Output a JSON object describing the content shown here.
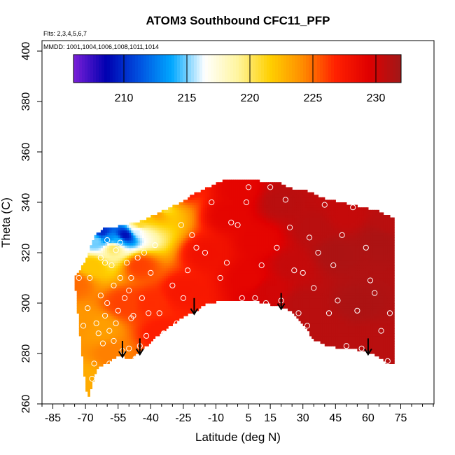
{
  "chart_data": {
    "type": "heatmap",
    "title": "ATOM3 Southbound CFC11_PFP",
    "flights_note": "Flts: 2,3,4,5,6,7",
    "dates_note": "MMDD: 1001,1004,1006,1008,1011,1014",
    "xlabel": "Latitude (deg N)",
    "ylabel": "Theta (C)",
    "xlim": [
      -90,
      90
    ],
    "ylim": [
      260,
      400
    ],
    "x_ticks": [
      -85,
      -70,
      -55,
      -40,
      -25,
      -10,
      5,
      15,
      30,
      45,
      60,
      75
    ],
    "x_tick_labels": [
      "-85",
      "-70",
      "-55",
      "-40",
      "-25",
      "-10",
      "5",
      "15",
      "30",
      "45",
      "60",
      "75"
    ],
    "x_minor_step": 5,
    "y_ticks": [
      260,
      280,
      300,
      320,
      340,
      360,
      380,
      400
    ],
    "y_tick_labels": [
      "260",
      "280",
      "300",
      "320",
      "340",
      "360",
      "380",
      "400"
    ],
    "colorbar": {
      "min": 206,
      "max": 232,
      "ticks": [
        210,
        215,
        220,
        225,
        230
      ],
      "tick_labels": [
        "210",
        "215",
        "220",
        "225",
        "230"
      ],
      "colors": [
        "#7b1fd8",
        "#0000b0",
        "#0050e0",
        "#00a8ff",
        "#ffffff",
        "#fff5a0",
        "#ffd000",
        "#ff8c00",
        "#ff2000",
        "#e00000",
        "#a01818"
      ]
    },
    "colors": {
      "point_outline": "#ffffff",
      "arrow": "#000000",
      "axes": "#000000"
    },
    "envelope": {
      "lat": [
        -75,
        -73,
        -71,
        -69,
        -67,
        -65,
        -62,
        -59,
        -55,
        -50,
        -45,
        -40,
        -35,
        -30,
        -25,
        -20,
        -15,
        -10,
        -5,
        0,
        5,
        10,
        15,
        20,
        25,
        30,
        35,
        40,
        45,
        50,
        55,
        60,
        65,
        70,
        72
      ],
      "theta_low": [
        310,
        292,
        275,
        262,
        268,
        274,
        276,
        277,
        280,
        278,
        281,
        285,
        289,
        292,
        295,
        297,
        300,
        301,
        301,
        301,
        301,
        301,
        300,
        299,
        297,
        292,
        286,
        284,
        283,
        282,
        282,
        281,
        279,
        276,
        276
      ],
      "theta_high": [
        310,
        312,
        315,
        318,
        324,
        327,
        329,
        330,
        330,
        331,
        332,
        334,
        336,
        338,
        340,
        343,
        345,
        347,
        349,
        349,
        349,
        348,
        348,
        347,
        345,
        345,
        343,
        341,
        340,
        339,
        338,
        337,
        336,
        334,
        334
      ]
    },
    "field_anchors": [
      [
        -74,
        308,
        225
      ],
      [
        -72,
        292,
        223.8
      ],
      [
        -70,
        270,
        223
      ],
      [
        -67,
        315,
        222
      ],
      [
        -65,
        325,
        215
      ],
      [
        -62,
        328,
        210
      ],
      [
        -60,
        326,
        213
      ],
      [
        -57,
        322,
        220
      ],
      [
        -55,
        325,
        214
      ],
      [
        -52,
        327,
        209
      ],
      [
        -46,
        329,
        216
      ],
      [
        -45,
        331,
        221
      ],
      [
        -42,
        334,
        222
      ],
      [
        -37,
        336,
        223.5
      ],
      [
        -35,
        338,
        220
      ],
      [
        -32,
        342,
        224
      ],
      [
        -27,
        345,
        228
      ],
      [
        -63,
        290,
        223.5
      ],
      [
        -58,
        280,
        224.5
      ],
      [
        -52,
        300,
        226
      ],
      [
        -45,
        315,
        226
      ],
      [
        -40,
        300,
        226.5
      ],
      [
        -35,
        288,
        227
      ],
      [
        -25,
        305,
        227.5
      ],
      [
        -15,
        320,
        228
      ],
      [
        -5,
        335,
        229
      ],
      [
        0,
        345,
        229
      ],
      [
        5,
        310,
        229
      ],
      [
        10,
        325,
        229
      ],
      [
        15,
        305,
        230
      ],
      [
        20,
        340,
        231
      ],
      [
        25,
        315,
        230.5
      ],
      [
        30,
        300,
        231
      ],
      [
        35,
        330,
        231
      ],
      [
        40,
        290,
        231
      ],
      [
        45,
        320,
        231.5
      ],
      [
        50,
        335,
        230.5
      ],
      [
        55,
        300,
        231.5
      ],
      [
        60,
        285,
        231
      ],
      [
        65,
        325,
        231.5
      ],
      [
        70,
        280,
        231
      ],
      [
        70,
        332,
        231
      ]
    ],
    "sample_points": [
      [
        -73,
        310
      ],
      [
        -71,
        291
      ],
      [
        -69,
        298
      ],
      [
        -68,
        310
      ],
      [
        -67,
        270
      ],
      [
        -66,
        276
      ],
      [
        -65,
        292
      ],
      [
        -64,
        288
      ],
      [
        -63,
        303
      ],
      [
        -63,
        318
      ],
      [
        -62,
        284
      ],
      [
        -61,
        295
      ],
      [
        -61,
        316
      ],
      [
        -60,
        300
      ],
      [
        -60,
        325
      ],
      [
        -59,
        276
      ],
      [
        -59,
        289
      ],
      [
        -58,
        315
      ],
      [
        -57,
        285
      ],
      [
        -57,
        307
      ],
      [
        -56,
        292
      ],
      [
        -56,
        321
      ],
      [
        -55,
        297
      ],
      [
        -54,
        310
      ],
      [
        -54,
        324
      ],
      [
        -53,
        281
      ],
      [
        -52,
        302
      ],
      [
        -51,
        316
      ],
      [
        -50,
        282
      ],
      [
        -50,
        305
      ],
      [
        -49,
        294
      ],
      [
        -49,
        310
      ],
      [
        -48,
        295
      ],
      [
        -47,
        278
      ],
      [
        -46,
        318
      ],
      [
        -45,
        283
      ],
      [
        -44,
        302
      ],
      [
        -43,
        320
      ],
      [
        -42,
        287
      ],
      [
        -41,
        296
      ],
      [
        -40,
        312
      ],
      [
        -38,
        323
      ],
      [
        -36,
        296
      ],
      [
        -34,
        288
      ],
      [
        -30,
        307
      ],
      [
        -28,
        292
      ],
      [
        -26,
        331
      ],
      [
        -25,
        302
      ],
      [
        -23,
        313
      ],
      [
        -21,
        327
      ],
      [
        -19,
        322
      ],
      [
        -15,
        320
      ],
      [
        -12,
        340
      ],
      [
        -8,
        310
      ],
      [
        -5,
        316
      ],
      [
        -3,
        332
      ],
      [
        0,
        331
      ],
      [
        2,
        302
      ],
      [
        4,
        340
      ],
      [
        5,
        346
      ],
      [
        8,
        302
      ],
      [
        11,
        315
      ],
      [
        13,
        300
      ],
      [
        15,
        346
      ],
      [
        18,
        322
      ],
      [
        20,
        301
      ],
      [
        22,
        341
      ],
      [
        24,
        330
      ],
      [
        26,
        313
      ],
      [
        28,
        296
      ],
      [
        30,
        312
      ],
      [
        32,
        291
      ],
      [
        33,
        326
      ],
      [
        35,
        306
      ],
      [
        37,
        320
      ],
      [
        39,
        280
      ],
      [
        40,
        339
      ],
      [
        42,
        296
      ],
      [
        44,
        315
      ],
      [
        46,
        301
      ],
      [
        48,
        327
      ],
      [
        50,
        283
      ],
      [
        53,
        338
      ],
      [
        55,
        297
      ],
      [
        57,
        282
      ],
      [
        59,
        322
      ],
      [
        61,
        309
      ],
      [
        63,
        304
      ],
      [
        66,
        289
      ],
      [
        69,
        277
      ],
      [
        70,
        296
      ]
    ],
    "arrows": [
      {
        "lat": -53,
        "theta": 285
      },
      {
        "lat": -45,
        "theta": 286
      },
      {
        "lat": -20,
        "theta": 302
      },
      {
        "lat": 20,
        "theta": 304
      },
      {
        "lat": 60,
        "theta": 286
      }
    ]
  }
}
